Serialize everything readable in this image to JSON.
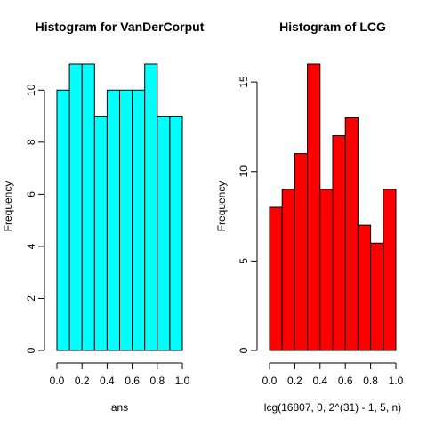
{
  "chart_data": [
    {
      "type": "bar",
      "title": "Histogram for VanDerCorput",
      "xlabel": "ans",
      "ylabel": "Frequency",
      "bin_edges": [
        0.0,
        0.1,
        0.2,
        0.3,
        0.4,
        0.5,
        0.6,
        0.7,
        0.8,
        0.9,
        1.0
      ],
      "values": [
        10,
        11,
        11,
        9,
        10,
        10,
        10,
        11,
        9,
        9
      ],
      "xlim": [
        0.0,
        1.0
      ],
      "ylim": [
        0,
        11
      ],
      "x_ticks": [
        0.0,
        0.2,
        0.4,
        0.6,
        0.8,
        1.0
      ],
      "x_tick_labels": [
        "0.0",
        "0.2",
        "0.4",
        "0.6",
        "0.8",
        "1.0"
      ],
      "y_ticks": [
        0,
        2,
        4,
        6,
        8,
        10
      ],
      "y_tick_labels": [
        "0",
        "2",
        "4",
        "6",
        "8",
        "10"
      ],
      "bar_color": "#00FFFF",
      "grid": false
    },
    {
      "type": "bar",
      "title": "Histogram of LCG",
      "xlabel": "lcg(16807, 0, 2^(31) - 1, 5, n)",
      "ylabel": "Frequency",
      "bin_edges": [
        0.0,
        0.1,
        0.2,
        0.3,
        0.4,
        0.5,
        0.6,
        0.7,
        0.8,
        0.9,
        1.0
      ],
      "values": [
        8,
        9,
        11,
        16,
        9,
        12,
        13,
        7,
        6,
        9
      ],
      "xlim": [
        0.0,
        1.0
      ],
      "ylim": [
        0,
        16
      ],
      "x_ticks": [
        0.0,
        0.2,
        0.4,
        0.6,
        0.8,
        1.0
      ],
      "x_tick_labels": [
        "0.0",
        "0.2",
        "0.4",
        "0.6",
        "0.8",
        "1.0"
      ],
      "y_ticks": [
        0,
        5,
        10,
        15
      ],
      "y_tick_labels": [
        "0",
        "5",
        "10",
        "15"
      ],
      "bar_color": "#FF0000",
      "grid": false
    }
  ]
}
